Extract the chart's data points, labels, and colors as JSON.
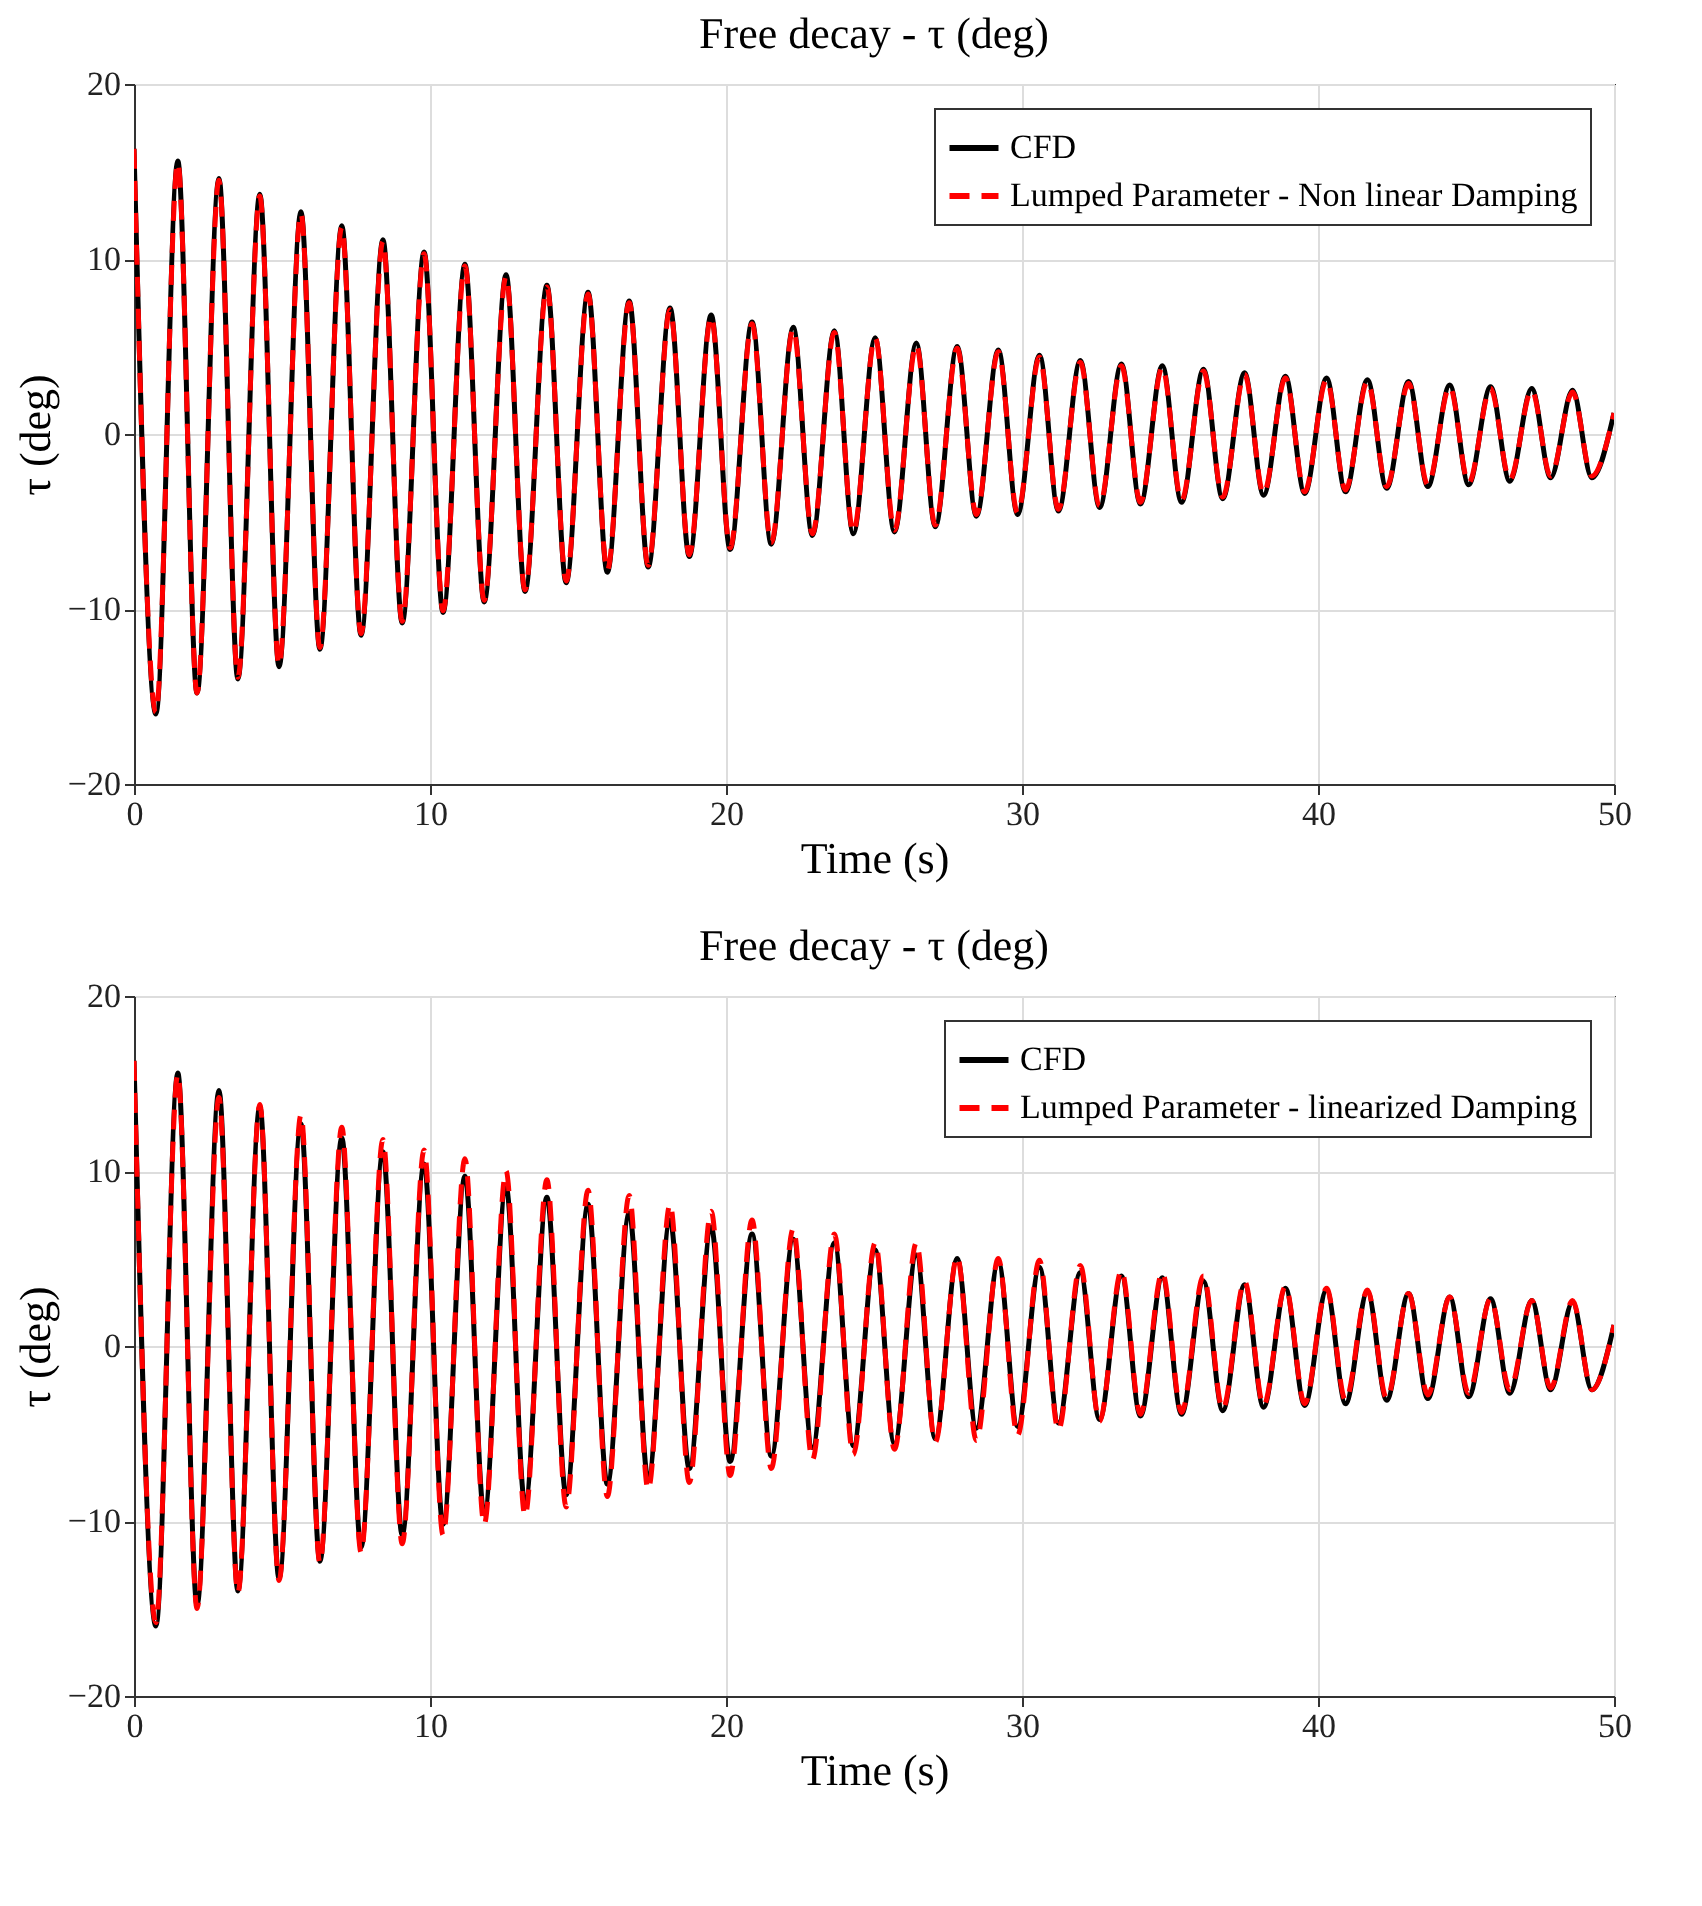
{
  "chart_data": [
    {
      "type": "line",
      "title": "Free decay - τ (deg)",
      "xlabel": "Time (s)",
      "ylabel": "τ (deg)",
      "xlim": [
        0,
        50
      ],
      "ylim": [
        -20,
        20
      ],
      "xticks": [
        0,
        10,
        20,
        30,
        40,
        50
      ],
      "yticks": [
        -20,
        -10,
        0,
        10,
        20
      ],
      "grid": true,
      "legend": "top right",
      "x": [
        0,
        0.74,
        1.48,
        2.13,
        2.87,
        3.51,
        4.25,
        4.9,
        5.64,
        6.28,
        7.02,
        7.67,
        8.41,
        9.06,
        9.8,
        10.44,
        11.18,
        11.83,
        12.57,
        13.21,
        13.95,
        14.6,
        15.34,
        15.99,
        16.73,
        17.37,
        18.11,
        18.76,
        19.5,
        20.14,
        20.88,
        21.53,
        22.27,
        22.92,
        23.66,
        24.3,
        25.04,
        25.69,
        26.43,
        27.07,
        27.81,
        28.46,
        29.2,
        29.85,
        30.59,
        31.23,
        31.97,
        32.62,
        33.36,
        34.0,
        34.74,
        35.39,
        36.13,
        36.78,
        37.52,
        38.16,
        38.9,
        39.55,
        40.29,
        40.93,
        41.67,
        42.32,
        43.06,
        43.71,
        44.45,
        45.09,
        45.83,
        46.48,
        47.22,
        47.86,
        48.6,
        49.25,
        50
      ],
      "series": [
        {
          "name": "CFD",
          "color": "#000000",
          "line_style": "solid",
          "values": [
            16.3,
            -16.0,
            15.6,
            -14.8,
            14.6,
            -14.0,
            13.7,
            -13.3,
            12.7,
            -12.3,
            11.9,
            -11.5,
            11.1,
            -10.8,
            10.4,
            -10.2,
            9.7,
            -9.6,
            9.1,
            -9.0,
            8.5,
            -8.5,
            8.1,
            -7.9,
            7.6,
            -7.6,
            7.2,
            -7.0,
            6.8,
            -6.6,
            6.4,
            -6.3,
            6.1,
            -5.8,
            5.9,
            -5.7,
            5.5,
            -5.6,
            5.2,
            -5.3,
            5.0,
            -4.7,
            4.8,
            -4.6,
            4.5,
            -4.4,
            4.2,
            -4.2,
            4.0,
            -4.0,
            3.9,
            -3.9,
            3.7,
            -3.7,
            3.5,
            -3.5,
            3.3,
            -3.4,
            3.2,
            -3.3,
            3.1,
            -3.1,
            3.0,
            -3.0,
            2.8,
            -2.9,
            2.7,
            -2.7,
            2.6,
            -2.5,
            2.5,
            -2.5,
            1.2
          ]
        },
        {
          "name": "Lumped Parameter - Non linear Damping",
          "color": "#ff0000",
          "line_style": "dashed",
          "values": [
            16.3,
            -15.9,
            15.5,
            -14.8,
            14.5,
            -13.9,
            13.6,
            -13.2,
            12.6,
            -12.2,
            11.8,
            -11.4,
            11.0,
            -10.7,
            10.3,
            -10.1,
            9.6,
            -9.5,
            9.0,
            -8.9,
            8.4,
            -8.4,
            8.0,
            -7.8,
            7.5,
            -7.5,
            7.1,
            -6.9,
            6.7,
            -6.5,
            6.3,
            -6.2,
            6.0,
            -5.7,
            5.8,
            -5.6,
            5.5,
            -5.5,
            5.1,
            -5.2,
            4.9,
            -4.6,
            4.7,
            -4.5,
            4.4,
            -4.3,
            4.1,
            -4.1,
            3.9,
            -3.9,
            3.8,
            -3.8,
            3.6,
            -3.6,
            3.4,
            -3.4,
            3.2,
            -3.3,
            3.1,
            -3.2,
            3.0,
            -3.0,
            2.9,
            -2.9,
            2.7,
            -2.8,
            2.6,
            -2.6,
            2.5,
            -2.4,
            2.4,
            -2.4,
            1.2
          ]
        }
      ]
    },
    {
      "type": "line",
      "title": "Free decay - τ (deg)",
      "xlabel": "Time (s)",
      "ylabel": "τ (deg)",
      "xlim": [
        0,
        50
      ],
      "ylim": [
        -20,
        20
      ],
      "xticks": [
        0,
        10,
        20,
        30,
        40,
        50
      ],
      "yticks": [
        -20,
        -10,
        0,
        10,
        20
      ],
      "grid": true,
      "legend": "top right",
      "x": [
        0,
        0.74,
        1.48,
        2.13,
        2.87,
        3.51,
        4.25,
        4.9,
        5.64,
        6.28,
        7.02,
        7.67,
        8.41,
        9.06,
        9.8,
        10.44,
        11.18,
        11.83,
        12.57,
        13.21,
        13.95,
        14.6,
        15.34,
        15.99,
        16.73,
        17.37,
        18.11,
        18.76,
        19.5,
        20.14,
        20.88,
        21.53,
        22.27,
        22.92,
        23.66,
        24.3,
        25.04,
        25.69,
        26.43,
        27.07,
        27.81,
        28.46,
        29.2,
        29.85,
        30.59,
        31.23,
        31.97,
        32.62,
        33.36,
        34.0,
        34.74,
        35.39,
        36.13,
        36.78,
        37.52,
        38.16,
        38.9,
        39.55,
        40.29,
        40.93,
        41.67,
        42.32,
        43.06,
        43.71,
        44.45,
        45.09,
        45.83,
        46.48,
        47.22,
        47.86,
        48.6,
        49.25,
        50
      ],
      "series": [
        {
          "name": "CFD",
          "color": "#000000",
          "line_style": "solid",
          "values": [
            16.3,
            -16.0,
            15.6,
            -14.8,
            14.6,
            -14.0,
            13.7,
            -13.3,
            12.7,
            -12.3,
            11.9,
            -11.5,
            11.1,
            -10.8,
            10.4,
            -10.2,
            9.7,
            -9.6,
            9.1,
            -9.0,
            8.5,
            -8.5,
            8.1,
            -7.9,
            7.6,
            -7.6,
            7.2,
            -7.0,
            6.8,
            -6.6,
            6.4,
            -6.3,
            6.1,
            -5.8,
            5.9,
            -5.7,
            5.5,
            -5.6,
            5.2,
            -5.3,
            5.0,
            -4.7,
            4.8,
            -4.6,
            4.5,
            -4.4,
            4.2,
            -4.2,
            4.0,
            -4.0,
            3.9,
            -3.9,
            3.7,
            -3.7,
            3.5,
            -3.5,
            3.3,
            -3.4,
            3.2,
            -3.3,
            3.1,
            -3.1,
            3.0,
            -3.0,
            2.8,
            -2.9,
            2.7,
            -2.7,
            2.6,
            -2.5,
            2.5,
            -2.5,
            1.2
          ]
        },
        {
          "name": "Lumped Parameter - linearized Damping",
          "color": "#ff0000",
          "line_style": "dashed",
          "values": [
            16.3,
            -15.8,
            15.5,
            -15.0,
            14.2,
            -14.1,
            13.8,
            -13.4,
            13.2,
            -12.4,
            12.5,
            -11.8,
            11.8,
            -11.3,
            11.2,
            -10.8,
            10.7,
            -10.2,
            10.0,
            -9.7,
            9.5,
            -9.2,
            8.9,
            -8.6,
            8.6,
            -8.2,
            8.1,
            -7.8,
            7.7,
            -7.4,
            7.2,
            -7.0,
            6.7,
            -6.5,
            6.4,
            -6.2,
            5.9,
            -5.9,
            5.9,
            -5.5,
            5.1,
            -5.4,
            5.0,
            -5.1,
            4.9,
            -4.8,
            4.6,
            -4.3,
            4.3,
            -3.9,
            4.2,
            -3.8,
            4.0,
            -3.6,
            3.7,
            -3.4,
            3.4,
            -3.3,
            3.3,
            -3.1,
            3.2,
            -3.0,
            3.0,
            -2.8,
            2.8,
            -2.7,
            2.7,
            -2.5,
            2.6,
            -2.4,
            2.6,
            -2.5,
            1.2
          ]
        }
      ]
    }
  ]
}
